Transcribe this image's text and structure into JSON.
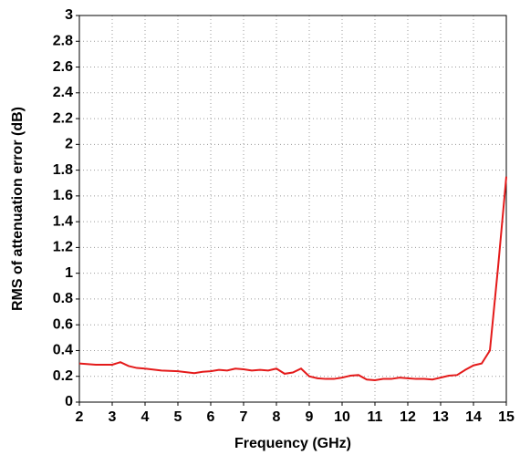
{
  "chart_data": {
    "type": "line",
    "xlabel": "Frequency (GHz)",
    "ylabel": "RMS of attenuation error (dB)",
    "series": [
      {
        "color": "#e41a1a",
        "x": [
          2,
          2.5,
          3,
          3.25,
          3.5,
          3.75,
          4,
          4.5,
          5,
          5.5,
          5.75,
          6,
          6.25,
          6.5,
          6.75,
          7,
          7.25,
          7.5,
          7.75,
          8,
          8.25,
          8.5,
          8.75,
          9,
          9.25,
          9.5,
          9.75,
          10,
          10.25,
          10.5,
          10.75,
          11,
          11.25,
          11.5,
          11.75,
          12,
          12.25,
          12.5,
          12.75,
          13,
          13.25,
          13.5,
          13.75,
          14,
          14.25,
          14.5,
          14.75,
          15
        ],
        "values": [
          0.3,
          0.29,
          0.29,
          0.31,
          0.28,
          0.265,
          0.26,
          0.245,
          0.24,
          0.225,
          0.235,
          0.24,
          0.25,
          0.245,
          0.26,
          0.255,
          0.245,
          0.25,
          0.245,
          0.26,
          0.22,
          0.23,
          0.26,
          0.2,
          0.185,
          0.18,
          0.18,
          0.19,
          0.205,
          0.21,
          0.175,
          0.17,
          0.18,
          0.18,
          0.19,
          0.185,
          0.18,
          0.18,
          0.175,
          0.19,
          0.205,
          0.21,
          0.25,
          0.285,
          0.3,
          0.4,
          1.05,
          1.75
        ]
      }
    ],
    "xlim": [
      2,
      15
    ],
    "xticks": [
      2,
      3,
      4,
      5,
      6,
      7,
      8,
      9,
      10,
      11,
      12,
      13,
      14,
      15
    ],
    "ylim": [
      0,
      3
    ],
    "yticks": [
      0,
      0.2,
      0.4,
      0.6,
      0.8,
      1,
      1.2,
      1.4,
      1.6,
      1.8,
      2,
      2.2,
      2.4,
      2.6,
      2.8,
      3
    ],
    "grid": true
  }
}
